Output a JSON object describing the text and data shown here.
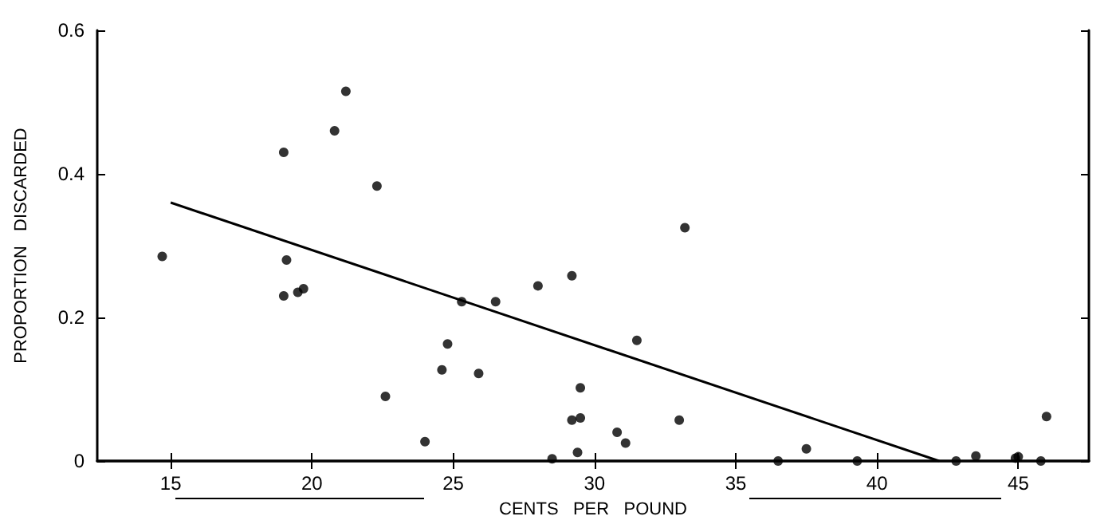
{
  "chart_data": {
    "type": "scatter",
    "xlabel": "CENTS   PER   POUND",
    "ylabel": "PROPORTION   DISCARDED",
    "xlim": [
      12.4,
      47.5
    ],
    "xticks": [
      15,
      20,
      25,
      30,
      35,
      40,
      45
    ],
    "ylim": [
      0,
      0.6
    ],
    "yticks": [
      0,
      0.2,
      0.4,
      0.6
    ],
    "grid": false,
    "series": [
      {
        "color": "#000000",
        "marker": "circle",
        "x": [
          14.7,
          19.0,
          19.1,
          19.0,
          19.5,
          19.7,
          20.8,
          21.2,
          22.3,
          22.6,
          24.0,
          24.6,
          24.8,
          25.3,
          25.9,
          26.5,
          28.0,
          28.5,
          29.2,
          29.2,
          29.4,
          29.5,
          29.5,
          30.8,
          31.1,
          31.5,
          33.0,
          33.2,
          36.5,
          37.5,
          39.3,
          42.8,
          43.5,
          44.9,
          45.0,
          45.8,
          46.0
        ],
        "values": [
          0.285,
          0.43,
          0.28,
          0.23,
          0.235,
          0.24,
          0.46,
          0.515,
          0.383,
          0.09,
          0.027,
          0.127,
          0.163,
          0.222,
          0.122,
          0.222,
          0.244,
          0.003,
          0.258,
          0.057,
          0.012,
          0.06,
          0.102,
          0.04,
          0.025,
          0.168,
          0.057,
          0.325,
          0.0,
          0.017,
          0.0,
          0.0,
          0.007,
          0.004,
          0.006,
          0.0,
          0.062
        ]
      },
      {
        "type": "line",
        "color": "#000000",
        "marker": "none",
        "line_style": "solid",
        "x": [
          15,
          42.2
        ],
        "values": [
          0.36,
          0
        ]
      }
    ]
  }
}
